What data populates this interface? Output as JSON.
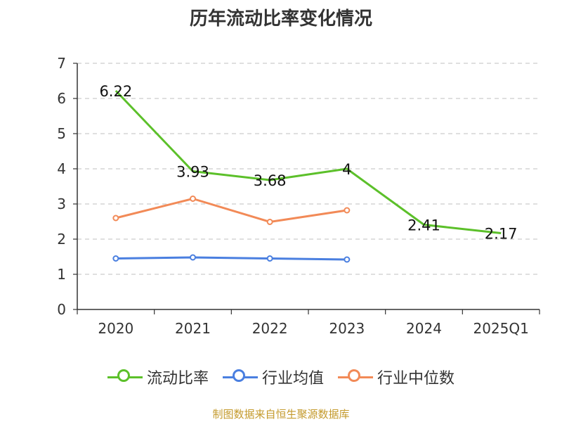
{
  "chart_data": {
    "type": "line",
    "title": "历年流动比率变化情况",
    "categories": [
      "2020",
      "2021",
      "2022",
      "2023",
      "2024",
      "2025Q1"
    ],
    "ylim": [
      0,
      7
    ],
    "yticks": [
      "0",
      "1",
      "2",
      "3",
      "4",
      "5",
      "6",
      "7"
    ],
    "grid": true,
    "legend_position": "bottom",
    "series": [
      {
        "name": "流动比率",
        "color": "#5cc02a",
        "values": [
          6.22,
          3.93,
          3.68,
          4,
          2.41,
          2.17
        ],
        "labels": [
          "6.22",
          "3.93",
          "3.68",
          "4",
          "2.41",
          "2.17"
        ],
        "markers": false
      },
      {
        "name": "行业均值",
        "color": "#4a7fe0",
        "values": [
          1.45,
          1.48,
          1.45,
          1.42,
          null,
          null
        ],
        "markers": true
      },
      {
        "name": "行业中位数",
        "color": "#f28a57",
        "values": [
          2.6,
          3.15,
          2.49,
          2.82,
          null,
          null
        ],
        "markers": true
      }
    ]
  },
  "source": "制图数据来自恒生聚源数据库"
}
